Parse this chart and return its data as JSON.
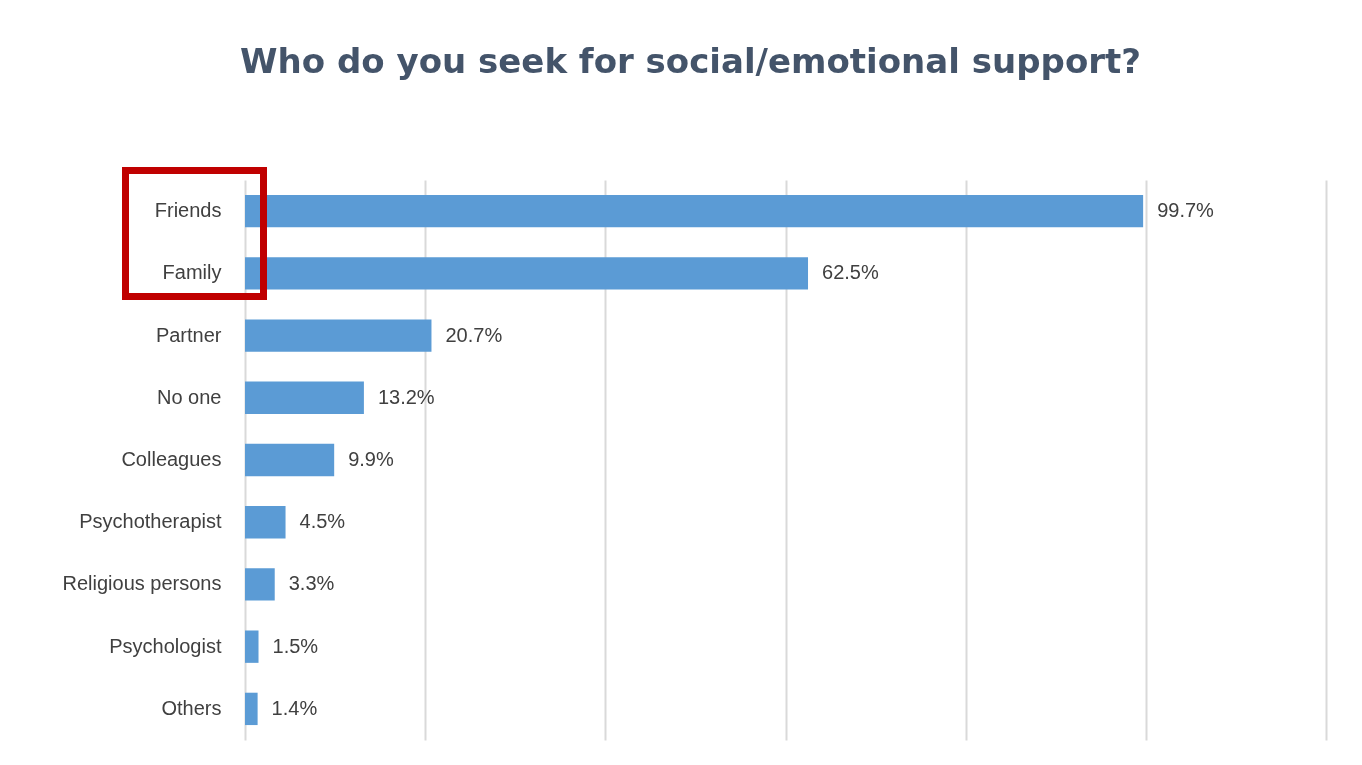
{
  "chart_data": {
    "type": "bar",
    "orientation": "horizontal",
    "title": "Who do you seek for social/emotional support?",
    "categories": [
      "Friends",
      "Family",
      "Partner",
      "No one",
      "Colleagues",
      "Psychotherapist",
      "Religious persons",
      "Psychologist",
      "Others"
    ],
    "values": [
      99.7,
      62.5,
      20.7,
      13.2,
      9.9,
      4.5,
      3.3,
      1.5,
      1.4
    ],
    "value_labels": [
      "99.7%",
      "62.5%",
      "20.7%",
      "13.2%",
      "9.9%",
      "4.5%",
      "3.3%",
      "1.5%",
      "1.4%"
    ],
    "color": "#5b9bd5",
    "xlim": [
      0,
      120
    ],
    "xticks": [
      {
        "value": 0,
        "label": null
      },
      {
        "value": 20,
        "label": null
      },
      {
        "value": 40,
        "label": null
      },
      {
        "value": 60,
        "label": null
      },
      {
        "value": 80,
        "label": null
      },
      {
        "value": 100,
        "label": null
      },
      {
        "value": 120,
        "label": null
      }
    ],
    "tick_labels": "y",
    "grid": "x"
  }
}
